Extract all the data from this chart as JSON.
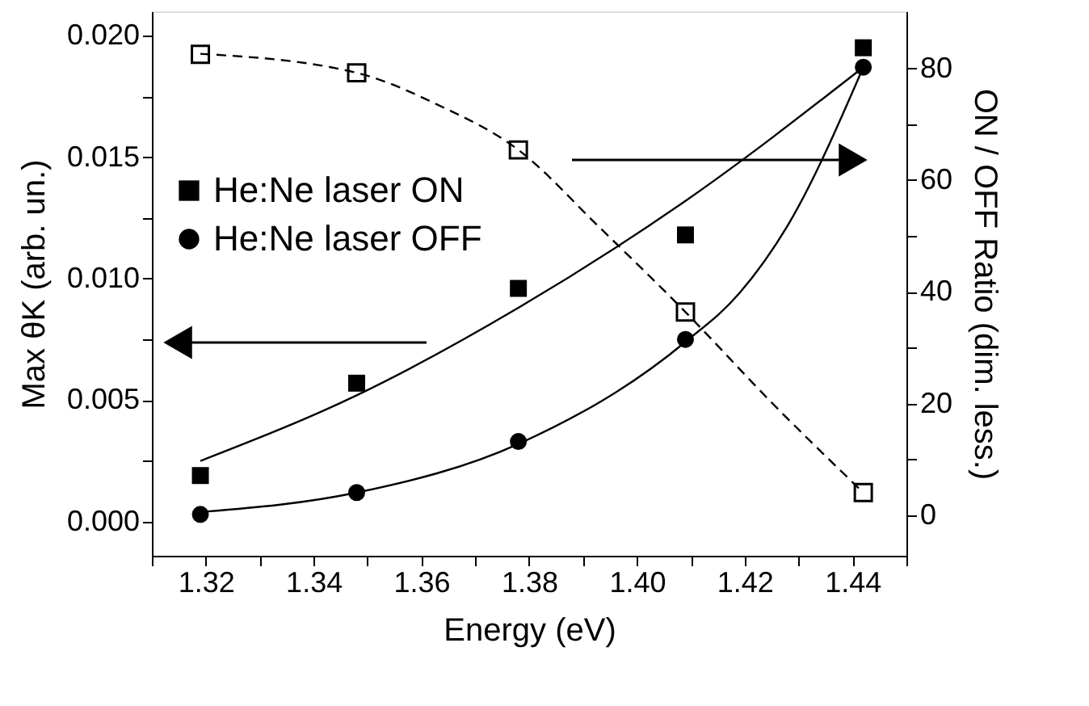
{
  "chart_data": {
    "type": "scatter",
    "xlabel": "Energy (eV)",
    "ylabel": "Max θK (arb. un.)",
    "y2label": "ON / OFF Ratio (dim. less.)",
    "xlim": [
      1.31,
      1.45
    ],
    "xticks": [
      {
        "value": 1.31,
        "label": null
      },
      1.32,
      {
        "value": 1.33,
        "label": null
      },
      1.34,
      {
        "value": 1.35,
        "label": null
      },
      1.36,
      {
        "value": 1.37,
        "label": null
      },
      1.38,
      {
        "value": 1.39,
        "label": null
      },
      {
        "value": 1.4,
        "label": "1.40"
      },
      {
        "value": 1.41,
        "label": null
      },
      1.42,
      {
        "value": 1.43,
        "label": null
      },
      1.44,
      {
        "value": 1.45,
        "label": null
      }
    ],
    "ylim": [
      -0.0014,
      0.021
    ],
    "yticks": [
      {
        "value": 0.0,
        "label": "0.000"
      },
      {
        "value": 0.0025,
        "label": null
      },
      {
        "value": 0.005,
        "label": "0.005"
      },
      {
        "value": 0.0075,
        "label": null
      },
      {
        "value": 0.01,
        "label": "0.010"
      },
      {
        "value": 0.0125,
        "label": null
      },
      {
        "value": 0.015,
        "label": "0.015"
      },
      {
        "value": 0.0175,
        "label": null
      },
      {
        "value": 0.02,
        "label": "0.020"
      }
    ],
    "y2lim": [
      -7.2,
      90.2
    ],
    "y2ticks": [
      0,
      {
        "value": 10,
        "label": null
      },
      20,
      {
        "value": 30,
        "label": null
      },
      40,
      {
        "value": 50,
        "label": null
      },
      60,
      {
        "value": 70,
        "label": null
      },
      80
    ],
    "grid": false,
    "legend": "top left",
    "series": [
      {
        "name": "He:Ne laser ON",
        "marker": "square",
        "color": "#000000",
        "x": [
          1.319,
          1.348,
          1.378,
          1.409,
          1.442
        ],
        "values": [
          0.0019,
          0.0057,
          0.0096,
          0.0118,
          0.0195
        ]
      },
      {
        "name": "He:Ne laser OFF",
        "marker": "circle",
        "color": "#000000",
        "x": [
          1.319,
          1.348,
          1.378,
          1.409,
          1.442
        ],
        "values": [
          0.0003,
          0.0012,
          0.0033,
          0.0075,
          0.0187
        ]
      },
      {
        "marker": "square",
        "axis": "y2",
        "color": "#000000",
        "x": [
          1.319,
          1.348,
          1.378,
          1.409,
          1.442
        ],
        "values": [
          82.5,
          79.2,
          65.4,
          36.4,
          4.1
        ]
      },
      {
        "type": "line",
        "marker": "none",
        "line_style": "solid",
        "color": "#000000",
        "x": [
          1.319,
          1.348,
          1.378,
          1.409,
          1.442
        ],
        "values": [
          0.0025,
          0.0052,
          0.0088,
          0.0132,
          0.0187
        ]
      },
      {
        "type": "line",
        "marker": "none",
        "line_style": "solid",
        "color": "#000000",
        "x": [
          1.319,
          1.348,
          1.378,
          1.409,
          1.419,
          1.428,
          1.442
        ],
        "values": [
          0.0004,
          0.0012,
          0.0032,
          0.0074,
          0.0094,
          0.0122,
          0.0187
        ]
      },
      {
        "type": "line",
        "marker": "none",
        "line_style": "dashed",
        "axis": "y2",
        "color": "#000000",
        "x": [
          1.319,
          1.348,
          1.363,
          1.378,
          1.393,
          1.409,
          1.425,
          1.442
        ],
        "values": [
          82.6,
          79.2,
          73.5,
          65.4,
          51.6,
          36.4,
          20.2,
          4.1
        ]
      }
    ]
  }
}
